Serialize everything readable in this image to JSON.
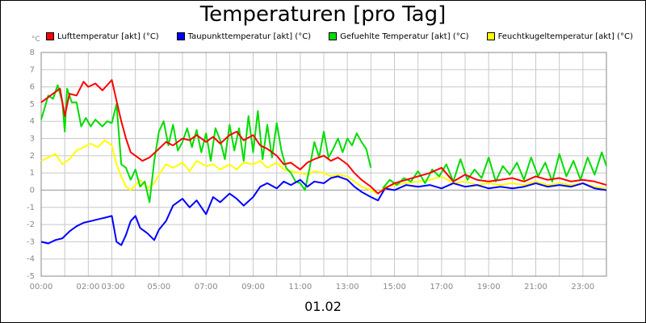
{
  "chart_data": {
    "type": "line",
    "title": "Temperaturen [pro Tag]",
    "ylabel": "°C",
    "xlabel": "01.02",
    "ylim": [
      -5,
      8
    ],
    "xlim": [
      0,
      24
    ],
    "grid": true,
    "legend_position": "top",
    "y_ticks": [
      8,
      7,
      6,
      5,
      4,
      3,
      2,
      1,
      0,
      -1,
      -2,
      -3,
      -4,
      -5
    ],
    "x_ticks": [
      {
        "h": 0,
        "label": "00:00"
      },
      {
        "h": 2,
        "label": "02:00"
      },
      {
        "h": 3,
        "label": "03:00"
      },
      {
        "h": 5,
        "label": "05:00"
      },
      {
        "h": 7,
        "label": "07:00"
      },
      {
        "h": 9,
        "label": "09:00"
      },
      {
        "h": 11,
        "label": "11:00"
      },
      {
        "h": 13,
        "label": "13:00"
      },
      {
        "h": 15,
        "label": "15:00"
      },
      {
        "h": 17,
        "label": "17:00"
      },
      {
        "h": 19,
        "label": "19:00"
      },
      {
        "h": 21,
        "label": "21:00"
      },
      {
        "h": 23,
        "label": "23:00"
      }
    ],
    "series": [
      {
        "name": "Lufttemperatur [akt] (°C)",
        "color": "#ff0000",
        "x": [
          0,
          0.5,
          0.8,
          1.0,
          1.2,
          1.5,
          1.8,
          2.0,
          2.3,
          2.6,
          2.8,
          3.0,
          3.2,
          3.4,
          3.6,
          3.8,
          4.0,
          4.3,
          4.6,
          5.0,
          5.3,
          5.6,
          6.0,
          6.3,
          6.6,
          7.0,
          7.3,
          7.6,
          8.0,
          8.3,
          8.6,
          9.0,
          9.3,
          9.6,
          10.0,
          10.3,
          10.6,
          11.0,
          11.3,
          11.6,
          12.0,
          12.3,
          12.6,
          13.0,
          13.3,
          13.6,
          14.0,
          14.3,
          14.6,
          15.0,
          15.5,
          16.0,
          16.5,
          17.0,
          17.5,
          18.0,
          18.5,
          19.0,
          19.5,
          20.0,
          20.5,
          21.0,
          21.5,
          22.0,
          22.5,
          23.0,
          23.5,
          24.0
        ],
        "values": [
          5.1,
          5.6,
          5.9,
          4.3,
          5.6,
          5.5,
          6.3,
          6.0,
          6.2,
          5.8,
          6.1,
          6.4,
          5.2,
          4.0,
          3.0,
          2.2,
          2.0,
          1.7,
          1.9,
          2.4,
          2.8,
          2.6,
          3.0,
          2.9,
          3.2,
          2.8,
          3.1,
          2.7,
          3.2,
          3.4,
          2.9,
          3.2,
          2.6,
          2.4,
          2.0,
          1.5,
          1.6,
          1.2,
          1.6,
          1.8,
          2.0,
          1.7,
          1.9,
          1.5,
          1.0,
          0.6,
          0.2,
          -0.2,
          0.1,
          0.4,
          0.6,
          0.8,
          1.0,
          1.3,
          0.5,
          0.9,
          0.6,
          0.5,
          0.6,
          0.7,
          0.5,
          0.8,
          0.6,
          0.7,
          0.5,
          0.6,
          0.5,
          0.3
        ]
      },
      {
        "name": "Taupunkttemperatur [akt] (°C)",
        "color": "#0000ff",
        "x": [
          0,
          0.3,
          0.6,
          0.9,
          1.2,
          1.5,
          1.8,
          2.1,
          2.4,
          2.7,
          3.0,
          3.2,
          3.4,
          3.6,
          3.8,
          4.0,
          4.2,
          4.5,
          4.8,
          5.0,
          5.3,
          5.6,
          6.0,
          6.3,
          6.6,
          7.0,
          7.3,
          7.6,
          8.0,
          8.3,
          8.6,
          9.0,
          9.3,
          9.6,
          10.0,
          10.3,
          10.6,
          11.0,
          11.3,
          11.6,
          12.0,
          12.3,
          12.6,
          13.0,
          13.3,
          13.6,
          14.0,
          14.3,
          14.6,
          15.0,
          15.5,
          16.0,
          16.5,
          17.0,
          17.5,
          18.0,
          18.5,
          19.0,
          19.5,
          20.0,
          20.5,
          21.0,
          21.5,
          22.0,
          22.5,
          23.0,
          23.5,
          24.0
        ],
        "values": [
          -3.0,
          -3.1,
          -2.9,
          -2.8,
          -2.4,
          -2.1,
          -1.9,
          -1.8,
          -1.7,
          -1.6,
          -1.5,
          -3.0,
          -3.2,
          -2.6,
          -1.8,
          -1.5,
          -2.2,
          -2.5,
          -2.9,
          -2.3,
          -1.8,
          -0.9,
          -0.5,
          -1.0,
          -0.6,
          -1.4,
          -0.4,
          -0.7,
          -0.2,
          -0.5,
          -0.9,
          -0.4,
          0.2,
          0.4,
          0.1,
          0.5,
          0.3,
          0.6,
          0.2,
          0.5,
          0.4,
          0.7,
          0.8,
          0.6,
          0.2,
          -0.1,
          -0.4,
          -0.6,
          0.1,
          0.0,
          0.3,
          0.2,
          0.3,
          0.1,
          0.4,
          0.2,
          0.3,
          0.1,
          0.2,
          0.1,
          0.2,
          0.4,
          0.2,
          0.3,
          0.2,
          0.4,
          0.1,
          0.0
        ]
      },
      {
        "name": "Gefuehlte Temperatur [akt] (°C)",
        "color": "#00dd00",
        "x": [
          0,
          0.3,
          0.5,
          0.7,
          0.9,
          1.0,
          1.1,
          1.3,
          1.5,
          1.7,
          1.9,
          2.1,
          2.3,
          2.6,
          2.8,
          3.0,
          3.2,
          3.4,
          3.6,
          3.8,
          4.0,
          4.2,
          4.4,
          4.6,
          4.8,
          5.0,
          5.2,
          5.4,
          5.6,
          5.8,
          6.0,
          6.2,
          6.4,
          6.6,
          6.8,
          7.0,
          7.2,
          7.4,
          7.6,
          7.8,
          8.0,
          8.2,
          8.4,
          8.6,
          8.8,
          9.0,
          9.2,
          9.4,
          9.6,
          9.8,
          10.0,
          10.2,
          10.4,
          10.6,
          10.8,
          11.0,
          11.2,
          11.4,
          11.6,
          11.8,
          12.0,
          12.2,
          12.4,
          12.6,
          12.8,
          13.0,
          13.2,
          13.4,
          13.6,
          13.8,
          14.0
        ],
        "values": [
          4.1,
          5.5,
          5.3,
          6.1,
          5.1,
          3.4,
          5.9,
          5.1,
          5.1,
          3.7,
          4.2,
          3.7,
          4.1,
          3.7,
          4.0,
          3.9,
          5.0,
          1.5,
          1.3,
          0.6,
          1.2,
          0.2,
          0.5,
          -0.7,
          1.7,
          3.4,
          4.0,
          2.6,
          3.8,
          2.3,
          2.8,
          3.6,
          2.5,
          3.5,
          2.2,
          3.3,
          1.7,
          3.6,
          2.9,
          1.8,
          3.8,
          2.3,
          3.6,
          1.7,
          4.3,
          2.2,
          4.6,
          1.8,
          3.8,
          1.9,
          3.9,
          2.3,
          1.3,
          1.0,
          0.5,
          0.4,
          0.0,
          1.3,
          2.8,
          1.9,
          3.4,
          1.9,
          2.4,
          3.0,
          2.2,
          3.0,
          2.6,
          3.3,
          2.8,
          2.4,
          1.3
        ]
      },
      {
        "name": "Gefuehlte Temperatur [akt] (°C)",
        "color": "#00dd00",
        "x": [
          14.5,
          14.8,
          15.1,
          15.4,
          15.7,
          16.0,
          16.3,
          16.6,
          16.9,
          17.2,
          17.5,
          17.8,
          18.1,
          18.4,
          18.7,
          19.0,
          19.3,
          19.6,
          19.9,
          20.2,
          20.5,
          20.8,
          21.1,
          21.4,
          21.7,
          22.0,
          22.3,
          22.6,
          22.9,
          23.2,
          23.5,
          23.8,
          24.0
        ],
        "values": [
          0.1,
          0.6,
          0.3,
          0.7,
          0.5,
          1.1,
          0.4,
          1.2,
          0.8,
          1.5,
          0.5,
          1.8,
          0.6,
          1.2,
          0.7,
          1.9,
          0.5,
          1.4,
          0.9,
          1.6,
          0.6,
          1.9,
          0.8,
          1.6,
          0.5,
          2.1,
          0.8,
          1.7,
          0.6,
          1.9,
          0.9,
          2.2,
          1.4
        ]
      },
      {
        "name": "Feuchtkugeltemperatur [akt] (°C)",
        "color": "#ffff00",
        "x": [
          0,
          0.3,
          0.6,
          0.9,
          1.2,
          1.5,
          1.8,
          2.1,
          2.4,
          2.7,
          3.0,
          3.2,
          3.4,
          3.6,
          3.8,
          4.0,
          4.2,
          4.5,
          4.8,
          5.0,
          5.3,
          5.6,
          6.0,
          6.3,
          6.6,
          7.0,
          7.3,
          7.6,
          8.0,
          8.3,
          8.6,
          9.0,
          9.3,
          9.6,
          10.0,
          10.3,
          10.6,
          11.0,
          11.3,
          11.6,
          12.0,
          12.3,
          12.6,
          13.0,
          13.3,
          13.6,
          14.0,
          14.3,
          14.6,
          15.0,
          15.5,
          16.0,
          16.5,
          17.0,
          17.5,
          18.0,
          18.5,
          19.0,
          19.5,
          20.0,
          20.5,
          21.0,
          21.5,
          22.0,
          22.5,
          23.0,
          23.5,
          24.0
        ],
        "values": [
          1.7,
          1.9,
          2.1,
          1.5,
          1.8,
          2.3,
          2.5,
          2.7,
          2.5,
          2.9,
          2.6,
          1.5,
          0.8,
          0.2,
          0.0,
          0.3,
          0.6,
          0.1,
          0.4,
          0.9,
          1.5,
          1.3,
          1.6,
          1.1,
          1.7,
          1.4,
          1.5,
          1.2,
          1.5,
          1.2,
          1.6,
          1.5,
          1.7,
          1.3,
          1.6,
          1.2,
          1.1,
          1.0,
          0.9,
          1.1,
          1.0,
          0.8,
          0.9,
          0.8,
          0.5,
          0.2,
          0.0,
          -0.2,
          0.2,
          0.3,
          0.4,
          0.5,
          0.6,
          0.8,
          0.4,
          0.5,
          0.3,
          0.4,
          0.3,
          0.4,
          0.3,
          0.5,
          0.3,
          0.4,
          0.3,
          0.4,
          0.2,
          0.1
        ]
      }
    ],
    "legend": [
      {
        "label": "Lufttemperatur [akt] (°C)",
        "color": "#ff0000"
      },
      {
        "label": "Taupunkttemperatur [akt] (°C)",
        "color": "#0000ff"
      },
      {
        "label": "Gefuehlte Temperatur [akt] (°C)",
        "color": "#00dd00"
      },
      {
        "label": "Feuchtkugeltemperatur [akt] (°C)",
        "color": "#ffff00"
      }
    ]
  }
}
